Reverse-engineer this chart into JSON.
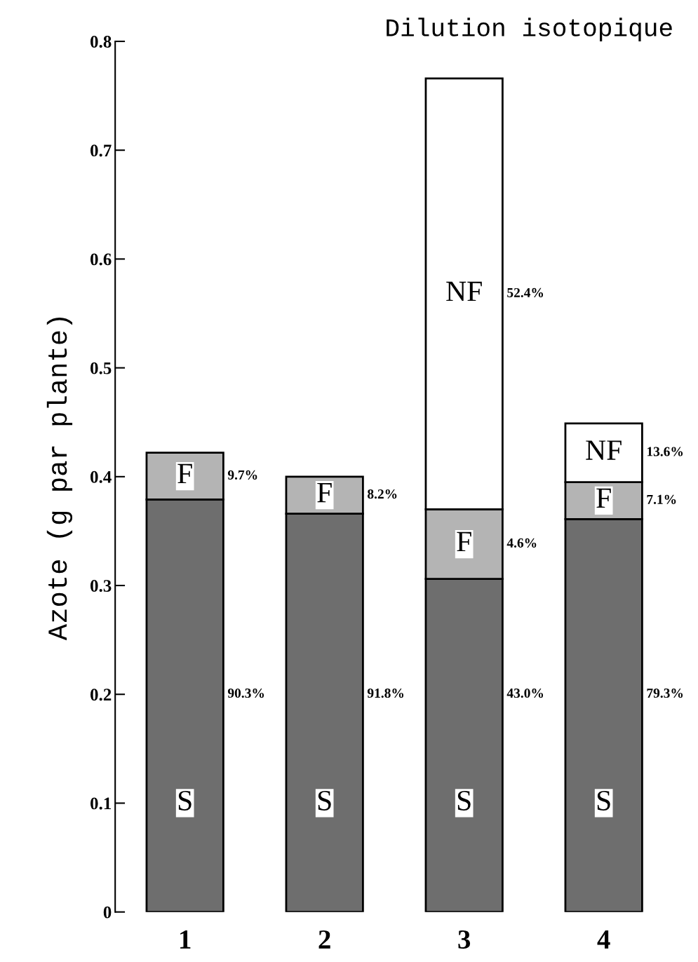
{
  "chart_data": {
    "type": "bar",
    "stacked": true,
    "title": "Dilution isotopique",
    "ylabel": "Azote (g par plante)",
    "categories": [
      "1",
      "2",
      "3",
      "4"
    ],
    "series": [
      {
        "name": "S",
        "color": "#6e6e6e",
        "values": [
          0.379,
          0.366,
          0.306,
          0.361
        ]
      },
      {
        "name": "F",
        "color": "#b4b4b4",
        "values": [
          0.043,
          0.034,
          0.064,
          0.034
        ]
      },
      {
        "name": "NF",
        "color": "#ffffff",
        "values": [
          null,
          null,
          0.396,
          0.054
        ]
      }
    ],
    "ylim": [
      0,
      0.8
    ],
    "yticks": [
      0,
      0.1,
      0.2,
      0.3,
      0.4,
      0.5,
      0.6,
      0.7,
      0.8
    ],
    "grid": false,
    "legend": false,
    "annotations": [
      "90.3%",
      "91.8%",
      "43.0%",
      "79.3%",
      "9.7%",
      "8.2%",
      "4.6%",
      "7.1%",
      "52.4%",
      "13.6%"
    ]
  }
}
